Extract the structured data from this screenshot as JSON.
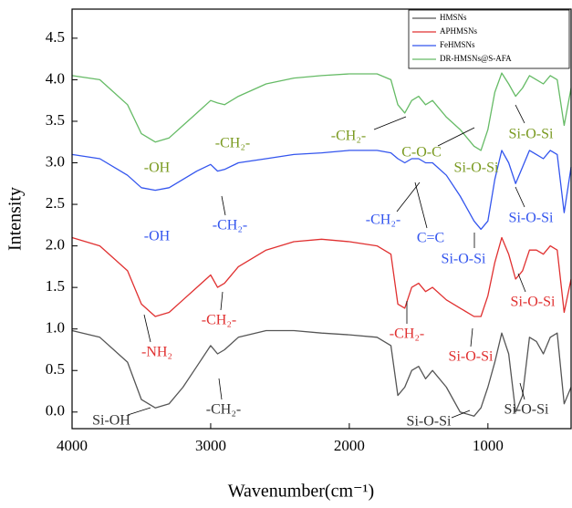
{
  "chart_data": {
    "type": "line",
    "xlabel": "Wavenumber(cm⁻¹)",
    "ylabel": "Intensity",
    "xlim": [
      4000,
      400
    ],
    "ylim": [
      -0.2,
      4.85
    ],
    "xticks": [
      4000,
      3000,
      2000,
      1000
    ],
    "yticks": [
      {
        "value": 0,
        "label": "0.0"
      },
      0.5,
      {
        "value": 1,
        "label": "1.0"
      },
      1.5,
      {
        "value": 2,
        "label": "2.0"
      },
      2.5,
      {
        "value": 3,
        "label": "3.0"
      },
      3.5,
      {
        "value": 4,
        "label": "4.0"
      },
      4.5
    ],
    "legend": "upper right",
    "x": [
      4000,
      3800,
      3600,
      3500,
      3400,
      3300,
      3200,
      3100,
      3000,
      2950,
      2900,
      2800,
      2600,
      2400,
      2200,
      2000,
      1800,
      1700,
      1650,
      1600,
      1550,
      1500,
      1450,
      1400,
      1300,
      1200,
      1100,
      1050,
      1000,
      950,
      900,
      850,
      800,
      750,
      700,
      650,
      600,
      550,
      500,
      450,
      400
    ],
    "series": [
      {
        "name": "HMSNs",
        "color": "#555555",
        "values": [
          0.98,
          0.9,
          0.6,
          0.15,
          0.05,
          0.1,
          0.3,
          0.55,
          0.8,
          0.7,
          0.75,
          0.9,
          0.98,
          0.98,
          0.95,
          0.93,
          0.9,
          0.8,
          0.2,
          0.3,
          0.5,
          0.55,
          0.4,
          0.5,
          0.3,
          0.0,
          -0.05,
          0.05,
          0.3,
          0.6,
          0.95,
          0.7,
          0.0,
          0.2,
          0.9,
          0.85,
          0.7,
          0.9,
          0.95,
          0.1,
          0.3
        ]
      },
      {
        "name": "APHMSNs",
        "color": "#e03030",
        "values": [
          2.1,
          2.0,
          1.7,
          1.3,
          1.15,
          1.2,
          1.35,
          1.5,
          1.65,
          1.5,
          1.55,
          1.75,
          1.95,
          2.05,
          2.08,
          2.05,
          2.0,
          1.9,
          1.3,
          1.25,
          1.5,
          1.55,
          1.45,
          1.5,
          1.35,
          1.25,
          1.15,
          1.15,
          1.4,
          1.8,
          2.1,
          1.9,
          1.6,
          1.7,
          1.95,
          1.95,
          1.9,
          2.0,
          1.95,
          1.2,
          1.6
        ]
      },
      {
        "name": "FeHMSNs",
        "color": "#3355ee",
        "values": [
          3.1,
          3.05,
          2.85,
          2.7,
          2.67,
          2.7,
          2.8,
          2.9,
          2.98,
          2.9,
          2.92,
          3.0,
          3.05,
          3.1,
          3.12,
          3.15,
          3.15,
          3.12,
          3.05,
          3.0,
          3.05,
          3.05,
          3.0,
          3.0,
          2.85,
          2.6,
          2.3,
          2.2,
          2.3,
          2.8,
          3.15,
          3.0,
          2.75,
          2.95,
          3.15,
          3.1,
          3.05,
          3.15,
          3.1,
          2.4,
          2.95
        ]
      },
      {
        "name": "DR-HMSNs@S-AFA",
        "color": "#66bb66",
        "values": [
          4.05,
          4.0,
          3.7,
          3.35,
          3.25,
          3.3,
          3.45,
          3.6,
          3.75,
          3.72,
          3.7,
          3.8,
          3.95,
          4.02,
          4.05,
          4.07,
          4.07,
          4.0,
          3.7,
          3.6,
          3.75,
          3.8,
          3.7,
          3.75,
          3.55,
          3.4,
          3.2,
          3.15,
          3.4,
          3.85,
          4.08,
          3.95,
          3.8,
          3.9,
          4.05,
          4.0,
          3.95,
          4.05,
          4.0,
          3.45,
          3.9
        ]
      }
    ],
    "annotations": [
      "-OH",
      "-CH₂-",
      "-CH₂-",
      "C-O-C",
      "Si-O-Si",
      "Si-O-Si",
      "-OH",
      "-CH₂-",
      "-CH₂-",
      "C=C",
      "Si-O-Si",
      "Si-O-Si",
      "-NH₂",
      "-CH₂-",
      "-CH₂-",
      "Si-O-Si",
      "Si-O-Si",
      "Si-OH",
      "-CH₂-",
      "Si-O-Si",
      "Si-O-Si"
    ]
  }
}
